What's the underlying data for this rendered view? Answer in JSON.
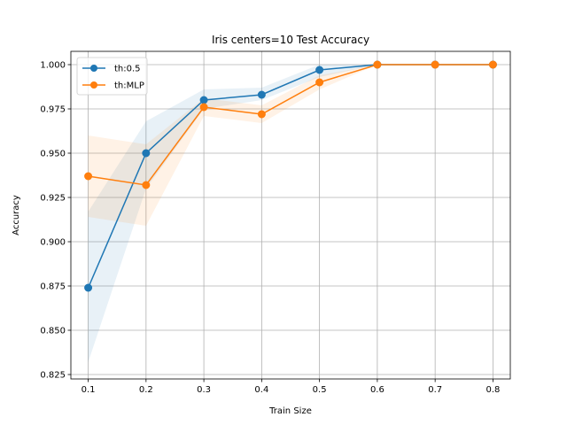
{
  "chart_data": {
    "type": "line",
    "title": "Iris  centers=10 Test Accuracy",
    "xlabel": "Train Size",
    "ylabel": "Accuracy",
    "x": [
      0.1,
      0.2,
      0.3,
      0.4,
      0.5,
      0.6,
      0.7,
      0.8
    ],
    "xticks": [
      "0.1",
      "0.2",
      "0.3",
      "0.4",
      "0.5",
      "0.6",
      "0.7",
      "0.8"
    ],
    "yticks": [
      "0.825",
      "0.850",
      "0.875",
      "0.900",
      "0.925",
      "0.950",
      "0.975",
      "1.000"
    ],
    "xlim": [
      0.07,
      0.83
    ],
    "ylim": [
      0.8225,
      1.0075
    ],
    "grid": true,
    "legend_position": "upper-left",
    "series": [
      {
        "name": "th:0.5",
        "color": "#1f77b4",
        "values": [
          0.874,
          0.95,
          0.98,
          0.983,
          0.997,
          1.0,
          1.0,
          1.0
        ],
        "band_lower": [
          0.832,
          0.93,
          0.975,
          0.98,
          0.993,
          1.0,
          1.0,
          1.0
        ],
        "band_upper": [
          0.917,
          0.968,
          0.986,
          0.987,
          1.0,
          1.0,
          1.0,
          1.0
        ]
      },
      {
        "name": "th:MLP",
        "color": "#ff7f0e",
        "values": [
          0.937,
          0.932,
          0.976,
          0.972,
          0.99,
          1.0,
          1.0,
          1.0
        ],
        "band_lower": [
          0.914,
          0.909,
          0.971,
          0.967,
          0.986,
          1.0,
          1.0,
          1.0
        ],
        "band_upper": [
          0.96,
          0.955,
          0.981,
          0.977,
          0.994,
          1.0,
          1.0,
          1.0
        ]
      }
    ]
  }
}
